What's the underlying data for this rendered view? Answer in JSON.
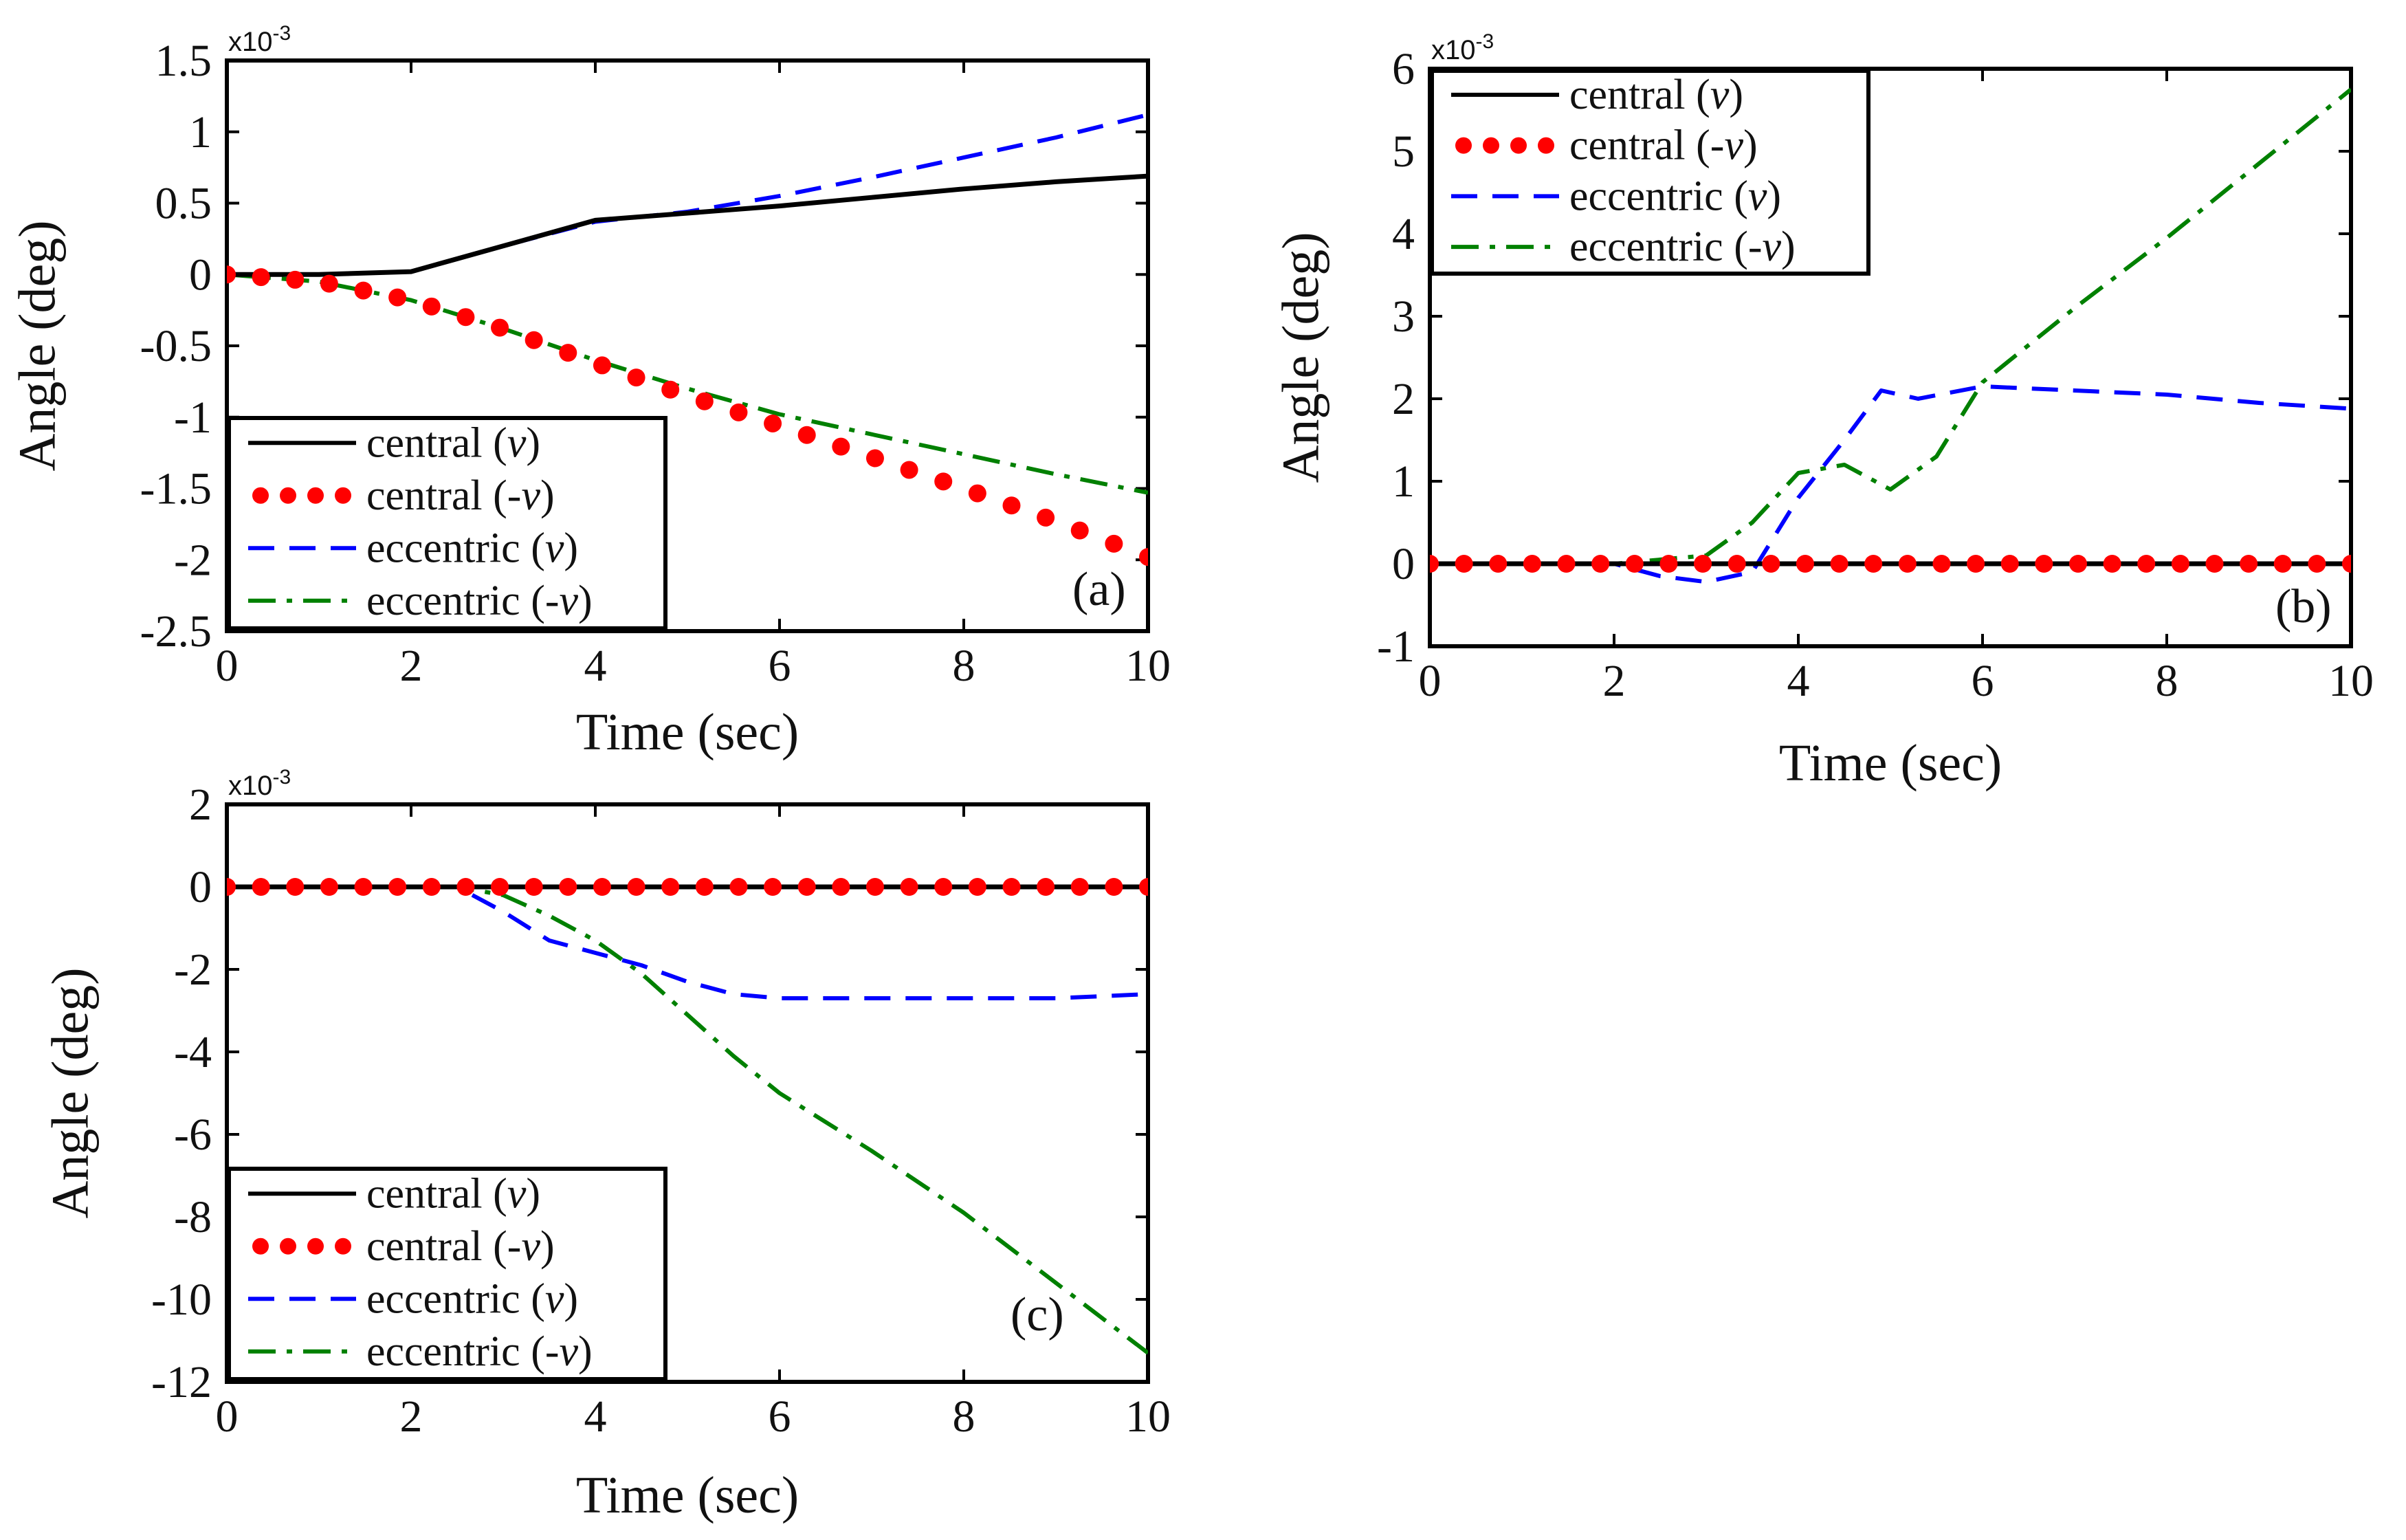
{
  "figure": {
    "colors": {
      "central_v": "#000000",
      "central_neg_v": "#ff0000",
      "eccentric_v": "#0000ff",
      "eccentric_neg_v": "#008000"
    }
  },
  "chart_data": [
    {
      "panel": "(a)",
      "type": "line",
      "xlabel": "Time (sec)",
      "ylabel": "Angle (deg)",
      "exponent_label": "x10",
      "exponent_power": "-3",
      "xlim": [
        0,
        10
      ],
      "ylim": [
        -2.5,
        1.5
      ],
      "xticks": [
        "0",
        "2",
        "4",
        "6",
        "8",
        "10"
      ],
      "yticks": [
        "1.5",
        "1",
        "0.5",
        "0",
        "-0.5",
        "-1",
        "-1.5",
        "-2",
        "-2.5"
      ],
      "ytick_values": [
        1.5,
        1,
        0.5,
        0,
        -0.5,
        -1,
        -1.5,
        -2,
        -2.5
      ],
      "legend_position": "bottom-left",
      "series": [
        {
          "name": "central (v)",
          "label": "central (",
          "label_var": "v",
          "label_end": ")",
          "style": "solid",
          "color": "#000000",
          "x": [
            0,
            1,
            2,
            3,
            4,
            5,
            6,
            7,
            8,
            9,
            10
          ],
          "y": [
            0,
            0,
            0.02,
            0.2,
            0.38,
            0.43,
            0.48,
            0.54,
            0.6,
            0.65,
            0.69
          ]
        },
        {
          "name": "central (-v)",
          "label": "central (-",
          "label_var": "v",
          "label_end": ")",
          "style": "dotted",
          "color": "#ff0000",
          "x": [
            0,
            1,
            2,
            3,
            4,
            5,
            6,
            7,
            8,
            9,
            10
          ],
          "y": [
            0,
            -0.05,
            -0.18,
            -0.38,
            -0.62,
            -0.85,
            -1.06,
            -1.28,
            -1.5,
            -1.73,
            -1.98
          ]
        },
        {
          "name": "eccentric (v)",
          "label": "eccentric (",
          "label_var": "v",
          "label_end": ")",
          "style": "dashed",
          "color": "#0000ff",
          "x": [
            0,
            1,
            2,
            3,
            4,
            5,
            6,
            7,
            8,
            9,
            10
          ],
          "y": [
            0,
            0,
            0.02,
            0.2,
            0.37,
            0.44,
            0.55,
            0.68,
            0.82,
            0.96,
            1.12
          ]
        },
        {
          "name": "eccentric (-v)",
          "label": "eccentric (",
          "label_var": "v",
          "label_end": ")",
          "label_prefix": "-",
          "style": "dashdot",
          "color": "#008000",
          "x": [
            0,
            1,
            2,
            3,
            4,
            5,
            6,
            7,
            8,
            9,
            10
          ],
          "y": [
            0,
            -0.05,
            -0.18,
            -0.38,
            -0.6,
            -0.8,
            -0.98,
            -1.12,
            -1.26,
            -1.4,
            -1.53
          ]
        }
      ]
    },
    {
      "panel": "(b)",
      "type": "line",
      "xlabel": "Time (sec)",
      "ylabel": "Angle (deg)",
      "exponent_label": "x10",
      "exponent_power": "-3",
      "xlim": [
        0,
        10
      ],
      "ylim": [
        -1,
        6
      ],
      "xticks": [
        "0",
        "2",
        "4",
        "6",
        "8",
        "10"
      ],
      "yticks": [
        "6",
        "5",
        "4",
        "3",
        "2",
        "1",
        "0",
        "-1"
      ],
      "ytick_values": [
        6,
        5,
        4,
        3,
        2,
        1,
        0,
        -1
      ],
      "legend_position": "top-left",
      "series": [
        {
          "name": "central (v)",
          "label": "central (",
          "label_var": "v",
          "label_end": ")",
          "style": "solid",
          "color": "#000000",
          "x": [
            0,
            2,
            4,
            6,
            8,
            10
          ],
          "y": [
            0,
            0,
            0,
            0,
            0,
            0
          ]
        },
        {
          "name": "central (-v)",
          "label": "central (-",
          "label_var": "v",
          "label_end": ")",
          "style": "dotted",
          "color": "#ff0000",
          "x": [
            0,
            2,
            4,
            6,
            8,
            10
          ],
          "y": [
            0,
            0,
            0,
            0,
            0,
            0
          ]
        },
        {
          "name": "eccentric (v)",
          "label": "eccentric (",
          "label_var": "v",
          "label_end": ")",
          "style": "dashed",
          "color": "#0000ff",
          "x": [
            0,
            2,
            2.5,
            3,
            3.5,
            4,
            4.5,
            4.9,
            5.3,
            6,
            7,
            8,
            9,
            10
          ],
          "y": [
            0,
            0,
            -0.15,
            -0.22,
            -0.1,
            0.8,
            1.5,
            2.1,
            2.0,
            2.15,
            2.1,
            2.05,
            1.95,
            1.88
          ]
        },
        {
          "name": "eccentric (-v)",
          "label": "eccentric (",
          "label_var": "v",
          "label_end": ")",
          "label_prefix": "-",
          "style": "dashdot",
          "color": "#008000",
          "x": [
            0,
            2,
            3,
            3.5,
            4,
            4.5,
            5,
            5.5,
            6,
            7,
            8,
            9,
            10
          ],
          "y": [
            0,
            0,
            0.1,
            0.5,
            1.1,
            1.2,
            0.9,
            1.3,
            2.2,
            3.1,
            3.95,
            4.85,
            5.75
          ]
        }
      ]
    },
    {
      "panel": "(c)",
      "type": "line",
      "xlabel": "Time (sec)",
      "ylabel": "Angle (deg)",
      "exponent_label": "x10",
      "exponent_power": "-3",
      "xlim": [
        0,
        10
      ],
      "ylim": [
        -12,
        2
      ],
      "xticks": [
        "0",
        "2",
        "4",
        "6",
        "8",
        "10"
      ],
      "yticks": [
        "2",
        "0",
        "-2",
        "-4",
        "-6",
        "-8",
        "-10",
        "-12"
      ],
      "ytick_values": [
        2,
        0,
        -2,
        -4,
        -6,
        -8,
        -10,
        -12
      ],
      "legend_position": "bottom-left",
      "series": [
        {
          "name": "central (v)",
          "label": "central (",
          "label_var": "v",
          "label_end": ")",
          "style": "solid",
          "color": "#000000",
          "x": [
            0,
            2,
            4,
            6,
            8,
            10
          ],
          "y": [
            0,
            0,
            0,
            0,
            0,
            0
          ]
        },
        {
          "name": "central (-v)",
          "label": "central (-",
          "label_var": "v",
          "label_end": ")",
          "style": "dotted",
          "color": "#ff0000",
          "x": [
            0,
            2,
            4,
            6,
            8,
            10
          ],
          "y": [
            0,
            0,
            0,
            0,
            0,
            0
          ]
        },
        {
          "name": "eccentric (v)",
          "label": "eccentric (",
          "label_var": "v",
          "label_end": ")",
          "style": "dashed",
          "color": "#0000ff",
          "x": [
            0,
            2.5,
            3,
            3.5,
            4,
            4.5,
            5,
            5.5,
            6,
            7,
            8,
            9,
            9.5,
            10
          ],
          "y": [
            0,
            0,
            -0.6,
            -1.3,
            -1.6,
            -1.9,
            -2.3,
            -2.6,
            -2.7,
            -2.7,
            -2.7,
            -2.7,
            -2.65,
            -2.6
          ]
        },
        {
          "name": "eccentric (-v)",
          "label": "eccentric (",
          "label_var": "v",
          "label_end": ")",
          "label_prefix": "-",
          "style": "dashdot",
          "color": "#008000",
          "x": [
            0,
            2.5,
            3,
            3.5,
            4,
            4.5,
            5,
            5.5,
            6,
            7,
            8,
            9,
            10
          ],
          "y": [
            0,
            0,
            -0.2,
            -0.7,
            -1.3,
            -2.1,
            -3.1,
            -4.1,
            -5.0,
            -6.4,
            -7.9,
            -9.6,
            -11.3
          ]
        }
      ]
    }
  ]
}
